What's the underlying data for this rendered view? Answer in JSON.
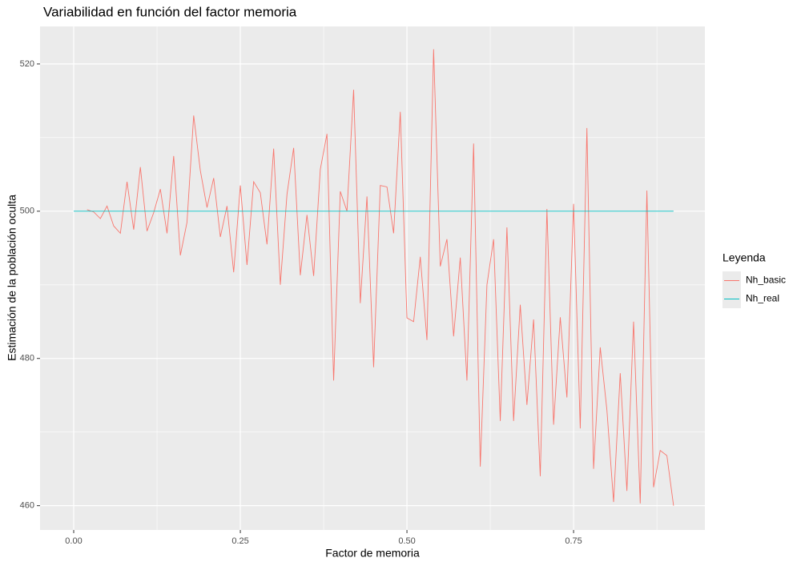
{
  "chart_data": {
    "type": "line",
    "title": "Variabilidad en función del factor memoria",
    "x_label": "Factor de memoria",
    "y_label": "Estimación de la población oculta",
    "legend_title": "Leyenda",
    "legend_position": "right",
    "grid": true,
    "xlim": [
      -0.0505,
      0.947
    ],
    "ylim": [
      456.7,
      525.1
    ],
    "xticks": [
      {
        "value": 0,
        "label": "0.00"
      },
      {
        "value": 0.25,
        "label": "0.25"
      },
      {
        "value": 0.5,
        "label": "0.50"
      },
      {
        "value": 0.75,
        "label": "0.75"
      }
    ],
    "yticks": [
      460,
      480,
      500,
      520
    ],
    "xminor": [
      0.125,
      0.375,
      0.625,
      0.875
    ],
    "yminor": [
      470,
      490,
      510
    ],
    "series": [
      {
        "name": "Nh_basic",
        "color": "#f8766d",
        "x": [
          0.02,
          0.03,
          0.04,
          0.05,
          0.06,
          0.07,
          0.08,
          0.09,
          0.1,
          0.11,
          0.12,
          0.13,
          0.14,
          0.15,
          0.16,
          0.17,
          0.18,
          0.19,
          0.2,
          0.21,
          0.22,
          0.23,
          0.24,
          0.25,
          0.26,
          0.27,
          0.28,
          0.29,
          0.3,
          0.31,
          0.32,
          0.33,
          0.34,
          0.35,
          0.36,
          0.37,
          0.38,
          0.39,
          0.4,
          0.41,
          0.42,
          0.43,
          0.44,
          0.45,
          0.46,
          0.47,
          0.48,
          0.49,
          0.5,
          0.51,
          0.52,
          0.53,
          0.54,
          0.55,
          0.56,
          0.57,
          0.58,
          0.59,
          0.6,
          0.61,
          0.62,
          0.63,
          0.64,
          0.65,
          0.66,
          0.67,
          0.68,
          0.69,
          0.7,
          0.71,
          0.72,
          0.73,
          0.74,
          0.75,
          0.76,
          0.77,
          0.78,
          0.79,
          0.8,
          0.81,
          0.82,
          0.83,
          0.84,
          0.85,
          0.86,
          0.87,
          0.88,
          0.89,
          0.9
        ],
        "values": [
          500.2,
          499.9,
          499,
          500.7,
          498,
          497,
          504,
          497.5,
          506,
          497.3,
          499.8,
          503,
          497,
          507.5,
          494,
          498.5,
          513,
          505.5,
          500.5,
          504.5,
          496.5,
          500.7,
          491.7,
          503.5,
          492.7,
          504,
          502.5,
          495.5,
          508.5,
          490,
          502.3,
          508.6,
          491.3,
          499.5,
          491.2,
          505.7,
          510.5,
          477,
          502.7,
          500,
          516.5,
          487.5,
          502,
          478.8,
          503.5,
          503.3,
          497,
          513.5,
          485.5,
          485,
          493.8,
          482.5,
          522,
          492.5,
          496.2,
          483,
          493.7,
          477,
          509.2,
          465.3,
          490,
          496.2,
          471.5,
          497.8,
          471.5,
          487.3,
          473.7,
          485.3,
          464,
          500.3,
          471,
          485.6,
          474.7,
          501,
          470.5,
          511.3,
          465,
          481.5,
          473,
          460.5,
          478,
          462,
          485,
          460.3,
          502.8,
          462.5,
          467.5,
          466.8,
          460
        ]
      },
      {
        "name": "Nh_real",
        "color": "#00bfc4",
        "x": [
          0,
          0.9
        ],
        "values": [
          500,
          500
        ]
      }
    ]
  }
}
